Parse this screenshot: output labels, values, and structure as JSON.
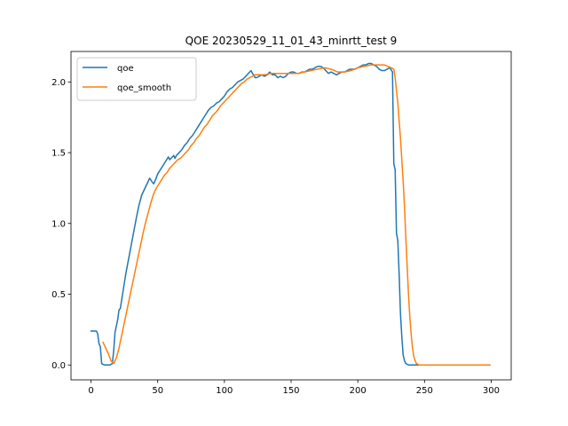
{
  "chart_data": {
    "type": "line",
    "title": "QOE 20230529_11_01_43_minrtt_test 9",
    "xlabel": "",
    "ylabel": "",
    "xlim": [
      -15,
      315
    ],
    "ylim": [
      -0.105,
      2.215
    ],
    "xticks": [
      0,
      50,
      100,
      150,
      200,
      250,
      300
    ],
    "yticks": [
      0.0,
      0.5,
      1.0,
      1.5,
      2.0
    ],
    "xtick_labels": [
      "0",
      "50",
      "100",
      "150",
      "200",
      "250",
      "300"
    ],
    "ytick_labels": [
      "0.0",
      "0.5",
      "1.0",
      "1.5",
      "2.0"
    ],
    "legend_position": "top-left",
    "grid": false,
    "series": [
      {
        "name": "qoe",
        "color": "#1f77b4",
        "x": [
          0,
          2,
          4,
          5,
          6,
          7,
          8,
          10,
          12,
          14,
          16,
          17,
          18,
          20,
          21,
          22,
          24,
          26,
          28,
          30,
          32,
          34,
          36,
          38,
          40,
          42,
          44,
          46,
          47,
          48,
          50,
          52,
          54,
          56,
          58,
          59,
          60,
          62,
          63,
          64,
          66,
          68,
          70,
          72,
          74,
          76,
          78,
          80,
          82,
          84,
          86,
          88,
          90,
          92,
          94,
          96,
          98,
          100,
          102,
          104,
          106,
          108,
          110,
          112,
          114,
          116,
          118,
          120,
          121,
          122,
          123,
          124,
          126,
          128,
          130,
          132,
          134,
          136,
          138,
          140,
          142,
          144,
          146,
          148,
          150,
          152,
          154,
          156,
          158,
          160,
          162,
          164,
          166,
          168,
          170,
          172,
          174,
          176,
          178,
          180,
          182,
          184,
          186,
          188,
          190,
          192,
          194,
          196,
          198,
          200,
          202,
          204,
          206,
          208,
          210,
          212,
          214,
          216,
          218,
          220,
          222,
          224,
          226,
          227,
          228,
          229,
          230,
          231,
          232,
          233,
          234,
          235,
          236,
          238,
          240,
          245,
          250,
          260,
          270,
          280,
          290,
          299
        ],
        "y": [
          0.24,
          0.24,
          0.24,
          0.22,
          0.15,
          0.13,
          0.01,
          0.0,
          0.0,
          0.0,
          0.01,
          0.1,
          0.23,
          0.32,
          0.39,
          0.4,
          0.52,
          0.64,
          0.74,
          0.84,
          0.94,
          1.04,
          1.13,
          1.2,
          1.24,
          1.28,
          1.32,
          1.29,
          1.28,
          1.3,
          1.35,
          1.38,
          1.41,
          1.44,
          1.47,
          1.45,
          1.46,
          1.48,
          1.46,
          1.48,
          1.5,
          1.52,
          1.55,
          1.57,
          1.6,
          1.62,
          1.65,
          1.68,
          1.71,
          1.74,
          1.77,
          1.8,
          1.82,
          1.83,
          1.85,
          1.86,
          1.88,
          1.9,
          1.93,
          1.95,
          1.96,
          1.98,
          2.0,
          2.01,
          2.02,
          2.04,
          2.06,
          2.08,
          2.06,
          2.05,
          2.03,
          2.03,
          2.04,
          2.05,
          2.04,
          2.05,
          2.07,
          2.05,
          2.05,
          2.03,
          2.04,
          2.03,
          2.04,
          2.06,
          2.07,
          2.07,
          2.06,
          2.06,
          2.07,
          2.07,
          2.08,
          2.09,
          2.09,
          2.1,
          2.11,
          2.11,
          2.1,
          2.08,
          2.06,
          2.07,
          2.06,
          2.05,
          2.06,
          2.07,
          2.07,
          2.08,
          2.09,
          2.09,
          2.09,
          2.1,
          2.11,
          2.12,
          2.12,
          2.13,
          2.13,
          2.12,
          2.11,
          2.09,
          2.08,
          2.08,
          2.09,
          2.1,
          2.07,
          1.42,
          1.38,
          0.93,
          0.88,
          0.64,
          0.36,
          0.2,
          0.07,
          0.03,
          0.01,
          0.0,
          0.0,
          0.0,
          0.0,
          0.0,
          0.0,
          0.0,
          0.0,
          0.0
        ]
      },
      {
        "name": "qoe_smooth",
        "color": "#ff7f0e",
        "x": [
          9,
          11,
          13,
          15,
          17,
          19,
          21,
          23,
          25,
          27,
          29,
          31,
          33,
          35,
          37,
          39,
          41,
          43,
          45,
          47,
          49,
          51,
          53,
          55,
          57,
          59,
          61,
          63,
          65,
          67,
          69,
          71,
          73,
          75,
          77,
          79,
          81,
          83,
          85,
          87,
          89,
          91,
          93,
          95,
          97,
          99,
          101,
          103,
          105,
          107,
          109,
          111,
          113,
          115,
          117,
          119,
          121,
          123,
          125,
          130,
          135,
          140,
          145,
          150,
          155,
          160,
          165,
          170,
          175,
          180,
          185,
          190,
          195,
          200,
          205,
          210,
          215,
          220,
          225,
          227,
          228,
          230,
          232,
          233,
          234,
          235,
          236,
          237,
          238,
          239,
          240,
          241,
          242,
          243,
          244,
          246,
          250,
          260,
          270,
          280,
          290,
          299
        ],
        "y": [
          0.16,
          0.12,
          0.08,
          0.03,
          0.01,
          0.05,
          0.12,
          0.21,
          0.3,
          0.39,
          0.48,
          0.57,
          0.66,
          0.75,
          0.84,
          0.93,
          1.01,
          1.08,
          1.15,
          1.21,
          1.25,
          1.28,
          1.31,
          1.34,
          1.36,
          1.39,
          1.41,
          1.43,
          1.45,
          1.46,
          1.48,
          1.5,
          1.52,
          1.55,
          1.57,
          1.6,
          1.62,
          1.65,
          1.68,
          1.7,
          1.73,
          1.76,
          1.78,
          1.8,
          1.83,
          1.85,
          1.87,
          1.89,
          1.91,
          1.93,
          1.95,
          1.97,
          1.99,
          2.0,
          2.02,
          2.03,
          2.04,
          2.05,
          2.05,
          2.05,
          2.06,
          2.06,
          2.06,
          2.06,
          2.06,
          2.07,
          2.08,
          2.09,
          2.1,
          2.09,
          2.07,
          2.07,
          2.08,
          2.1,
          2.11,
          2.12,
          2.12,
          2.12,
          2.1,
          2.09,
          2.03,
          1.85,
          1.6,
          1.45,
          1.3,
          1.12,
          0.9,
          0.7,
          0.5,
          0.34,
          0.22,
          0.12,
          0.06,
          0.03,
          0.01,
          0.0,
          0.0,
          0.0,
          0.0,
          0.0,
          0.0,
          0.0
        ]
      }
    ]
  }
}
